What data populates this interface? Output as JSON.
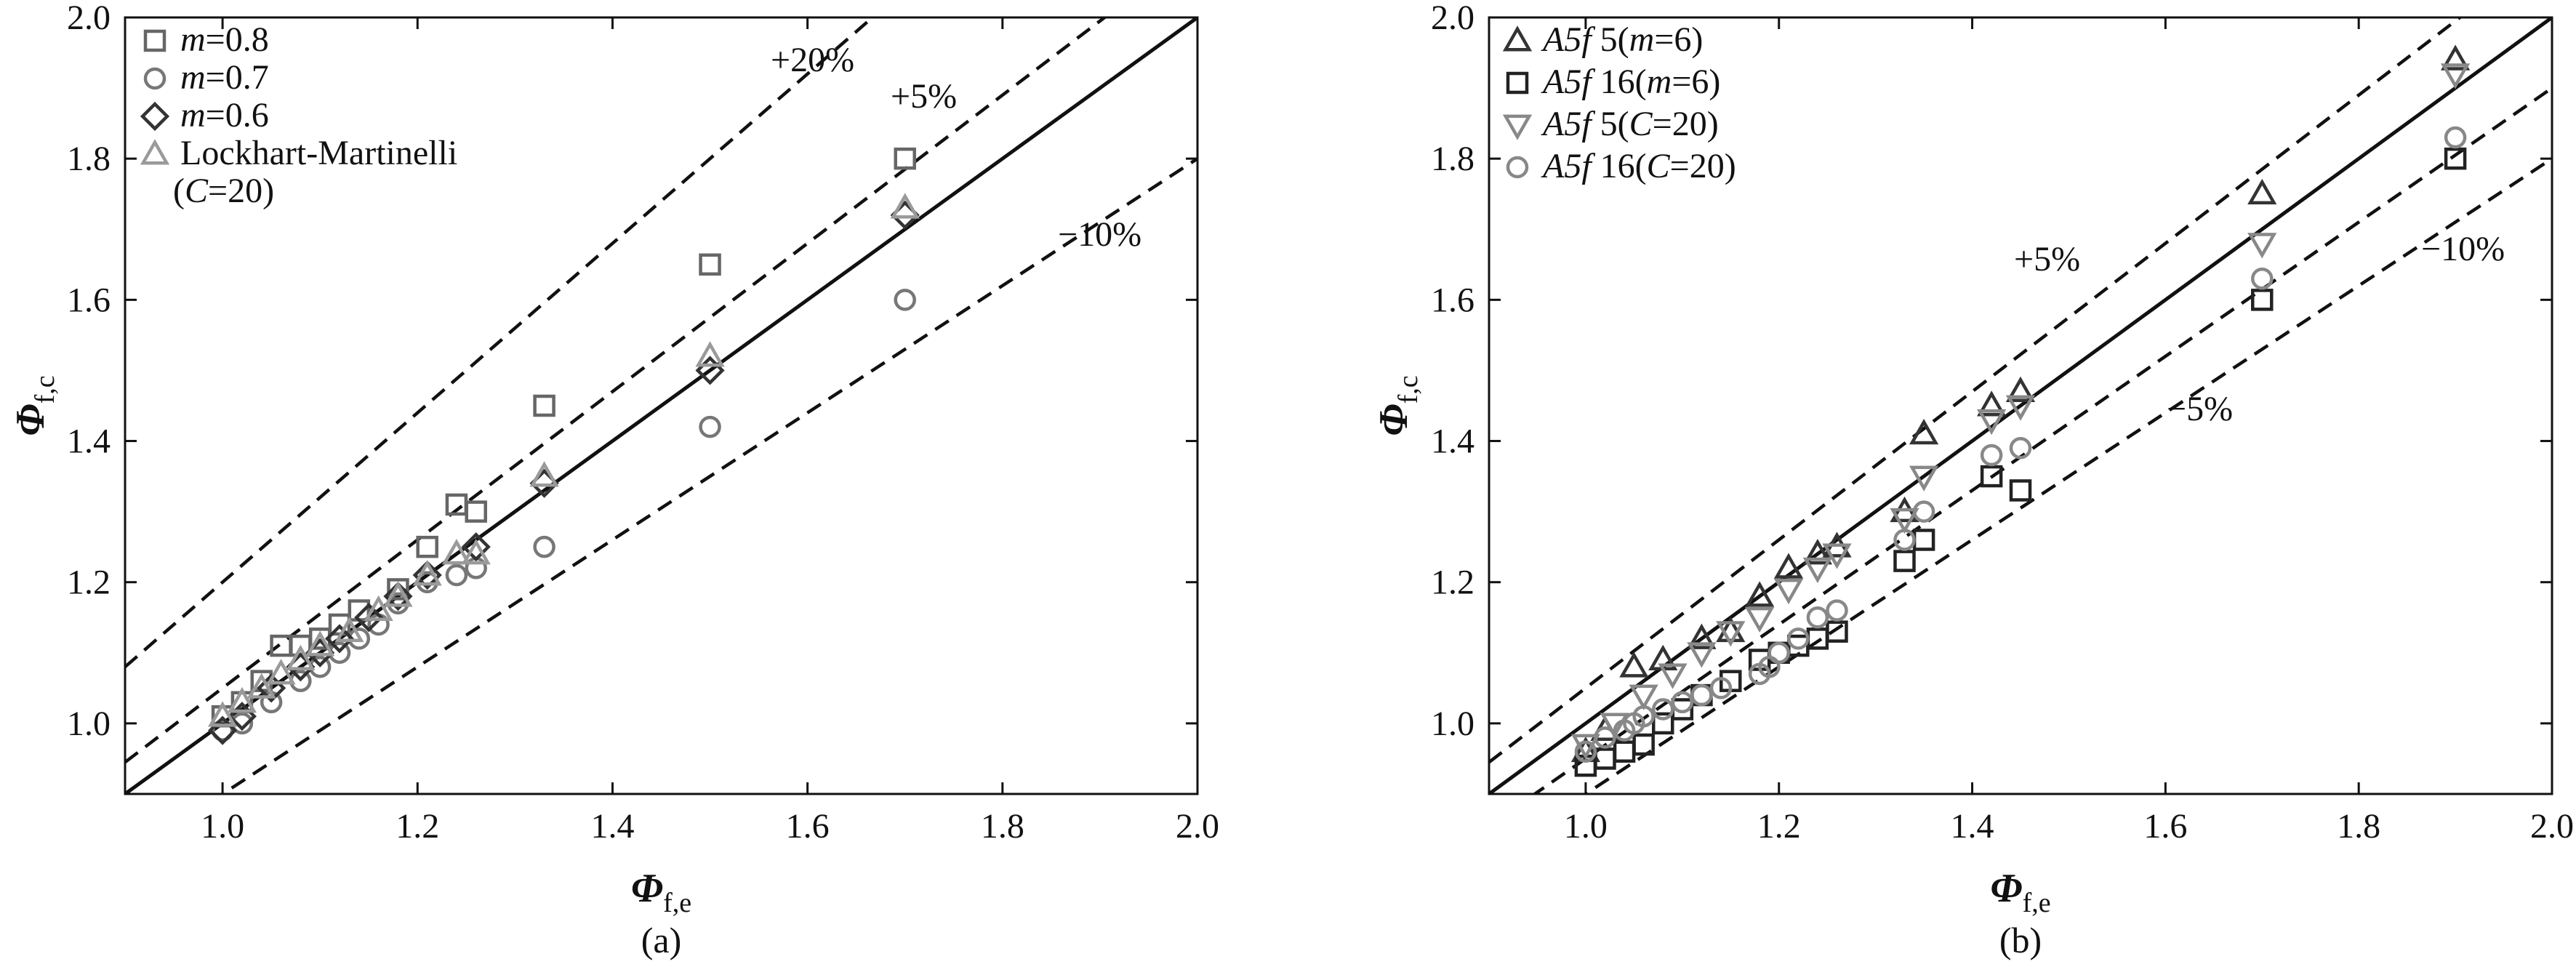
{
  "chart_data": [
    {
      "type": "scatter",
      "panel_label": "(a)",
      "xlabel": {
        "symbol": "Φ",
        "subscript": "f,e"
      },
      "ylabel": {
        "symbol": "Φ",
        "subscript": "f,c"
      },
      "xlim": [
        0.9,
        2.0
      ],
      "ylim": [
        0.9,
        2.0
      ],
      "xticks": [
        1.0,
        1.2,
        1.4,
        1.6,
        1.8,
        2.0
      ],
      "yticks": [
        1.0,
        1.2,
        1.4,
        1.6,
        1.8,
        2.0
      ],
      "xtick_labels": [
        "1.0",
        "1.2",
        "1.4",
        "1.6",
        "1.8",
        "2.0"
      ],
      "ytick_labels": [
        "1.0",
        "1.2",
        "1.4",
        "1.6",
        "1.8",
        "2.0"
      ],
      "grid": false,
      "legend_position": "top-left",
      "reference_lines": [
        {
          "label": "",
          "slope": 1.0,
          "style": "solid"
        },
        {
          "label": "+20%",
          "slope": 1.2,
          "style": "dashed"
        },
        {
          "label": "+5%",
          "slope": 1.05,
          "style": "dashed"
        },
        {
          "label": "−10%",
          "slope": 0.9,
          "style": "dashed"
        }
      ],
      "series": [
        {
          "name_parts": [
            {
              "t": "m",
              "i": true
            },
            {
              "t": "=0.8",
              "i": false
            }
          ],
          "marker": "square",
          "color": "#666666",
          "x": [
            1.0,
            1.02,
            1.04,
            1.06,
            1.08,
            1.1,
            1.12,
            1.14,
            1.18,
            1.21,
            1.24,
            1.26,
            1.33,
            1.5,
            1.7
          ],
          "y": [
            1.01,
            1.03,
            1.06,
            1.11,
            1.11,
            1.12,
            1.14,
            1.16,
            1.19,
            1.25,
            1.31,
            1.3,
            1.45,
            1.65,
            1.8
          ]
        },
        {
          "name_parts": [
            {
              "t": "m",
              "i": true
            },
            {
              "t": "=0.7",
              "i": false
            }
          ],
          "marker": "circle",
          "color": "#777777",
          "x": [
            1.0,
            1.02,
            1.05,
            1.08,
            1.1,
            1.12,
            1.14,
            1.16,
            1.18,
            1.21,
            1.24,
            1.26,
            1.33,
            1.5,
            1.7
          ],
          "y": [
            0.99,
            1.0,
            1.03,
            1.06,
            1.08,
            1.1,
            1.12,
            1.14,
            1.17,
            1.2,
            1.21,
            1.22,
            1.25,
            1.42,
            1.6
          ]
        },
        {
          "name_parts": [
            {
              "t": "m",
              "i": true
            },
            {
              "t": "=0.6",
              "i": false
            }
          ],
          "marker": "diamond",
          "color": "#333333",
          "x": [
            1.0,
            1.02,
            1.05,
            1.08,
            1.1,
            1.12,
            1.15,
            1.18,
            1.21,
            1.26,
            1.33,
            1.5,
            1.7
          ],
          "y": [
            0.99,
            1.01,
            1.05,
            1.08,
            1.1,
            1.12,
            1.15,
            1.18,
            1.21,
            1.25,
            1.34,
            1.5,
            1.72
          ]
        },
        {
          "name_parts": [
            {
              "t": "Lockhart-Martinelli",
              "i": false
            }
          ],
          "name_parts_line2": [
            {
              "t": "(",
              "i": false
            },
            {
              "t": "C",
              "i": true
            },
            {
              "t": "=20)",
              "i": false
            }
          ],
          "marker": "triangle-up",
          "color": "#9a9a9a",
          "x": [
            1.0,
            1.02,
            1.04,
            1.06,
            1.08,
            1.1,
            1.13,
            1.16,
            1.18,
            1.21,
            1.24,
            1.26,
            1.33,
            1.5,
            1.7
          ],
          "y": [
            1.01,
            1.03,
            1.05,
            1.07,
            1.09,
            1.11,
            1.13,
            1.16,
            1.18,
            1.21,
            1.24,
            1.24,
            1.35,
            1.52,
            1.73
          ]
        }
      ]
    },
    {
      "type": "scatter",
      "panel_label": "(b)",
      "xlabel": {
        "symbol": "Φ",
        "subscript": "f,e"
      },
      "ylabel": {
        "symbol": "Φ",
        "subscript": "f,c"
      },
      "xlim": [
        0.9,
        2.0
      ],
      "ylim": [
        0.9,
        2.0
      ],
      "xticks": [
        1.0,
        1.2,
        1.4,
        1.6,
        1.8,
        2.0
      ],
      "yticks": [
        1.0,
        1.2,
        1.4,
        1.6,
        1.8,
        2.0
      ],
      "xtick_labels": [
        "1.0",
        "1.2",
        "1.4",
        "1.6",
        "1.8",
        "2.0"
      ],
      "ytick_labels": [
        "1.0",
        "1.2",
        "1.4",
        "1.6",
        "1.8",
        "2.0"
      ],
      "grid": false,
      "legend_position": "top-left",
      "reference_lines": [
        {
          "label": "",
          "slope": 1.0,
          "style": "solid"
        },
        {
          "label": "+5%",
          "slope": 1.05,
          "style": "dashed"
        },
        {
          "label": "−5%",
          "slope": 0.95,
          "style": "dashed"
        },
        {
          "label": "−10%",
          "slope": 0.9,
          "style": "dashed"
        }
      ],
      "series": [
        {
          "name_parts": [
            {
              "t": "A5f",
              "i": true
            },
            {
              "t": " 5(",
              "i": false
            },
            {
              "t": "m",
              "i": true
            },
            {
              "t": "=6)",
              "i": false
            }
          ],
          "marker": "triangle-up",
          "color": "#333333",
          "x": [
            1.0,
            1.02,
            1.05,
            1.08,
            1.12,
            1.15,
            1.18,
            1.21,
            1.24,
            1.26,
            1.33,
            1.35,
            1.42,
            1.45,
            1.7,
            1.9
          ],
          "y": [
            0.96,
            0.99,
            1.08,
            1.09,
            1.12,
            1.13,
            1.18,
            1.22,
            1.24,
            1.25,
            1.3,
            1.41,
            1.45,
            1.47,
            1.75,
            1.94
          ]
        },
        {
          "name_parts": [
            {
              "t": "A5f",
              "i": true
            },
            {
              "t": " 16(",
              "i": false
            },
            {
              "t": "m",
              "i": true
            },
            {
              "t": "=6)",
              "i": false
            }
          ],
          "marker": "square",
          "color": "#222222",
          "x": [
            1.0,
            1.02,
            1.04,
            1.06,
            1.08,
            1.1,
            1.12,
            1.15,
            1.18,
            1.2,
            1.22,
            1.24,
            1.26,
            1.33,
            1.35,
            1.42,
            1.45,
            1.7,
            1.9
          ],
          "y": [
            0.94,
            0.95,
            0.96,
            0.97,
            1.0,
            1.02,
            1.04,
            1.06,
            1.09,
            1.1,
            1.11,
            1.12,
            1.13,
            1.23,
            1.26,
            1.35,
            1.33,
            1.6,
            1.8
          ]
        },
        {
          "name_parts": [
            {
              "t": "A5f",
              "i": true
            },
            {
              "t": " 5(",
              "i": false
            },
            {
              "t": "C",
              "i": true
            },
            {
              "t": "=20)",
              "i": false
            }
          ],
          "marker": "triangle-down",
          "color": "#888888",
          "x": [
            1.0,
            1.03,
            1.06,
            1.09,
            1.12,
            1.15,
            1.18,
            1.21,
            1.24,
            1.26,
            1.33,
            1.35,
            1.42,
            1.45,
            1.7,
            1.9
          ],
          "y": [
            0.97,
            1.0,
            1.04,
            1.07,
            1.1,
            1.13,
            1.15,
            1.19,
            1.22,
            1.24,
            1.29,
            1.35,
            1.43,
            1.45,
            1.68,
            1.92
          ]
        },
        {
          "name_parts": [
            {
              "t": "A5f",
              "i": true
            },
            {
              "t": " 16(",
              "i": false
            },
            {
              "t": "C",
              "i": true
            },
            {
              "t": "=20)",
              "i": false
            }
          ],
          "marker": "circle",
          "color": "#888888",
          "x": [
            1.0,
            1.02,
            1.04,
            1.05,
            1.06,
            1.08,
            1.1,
            1.12,
            1.14,
            1.18,
            1.19,
            1.2,
            1.22,
            1.24,
            1.26,
            1.33,
            1.35,
            1.42,
            1.45,
            1.7,
            1.9
          ],
          "y": [
            0.96,
            0.98,
            0.99,
            1.0,
            1.01,
            1.02,
            1.03,
            1.04,
            1.05,
            1.07,
            1.08,
            1.1,
            1.12,
            1.15,
            1.16,
            1.26,
            1.3,
            1.38,
            1.39,
            1.63,
            1.83
          ]
        }
      ]
    }
  ]
}
